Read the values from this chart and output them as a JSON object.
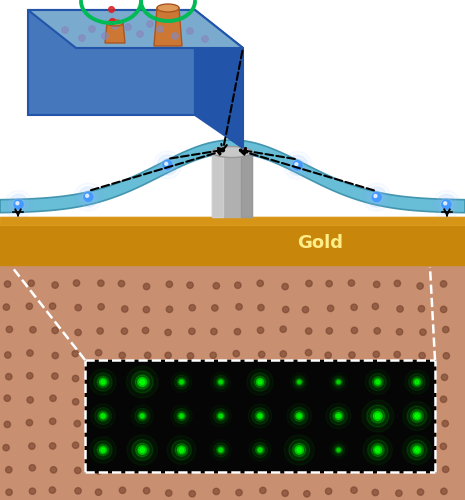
{
  "fig_width": 4.65,
  "fig_height": 5.0,
  "dpi": 100,
  "bg_color": "#ffffff",
  "gold_color": "#C8860A",
  "gold_top_color": "#E0A020",
  "gold_label": "Gold",
  "gold_label_color": "#FFEE88",
  "membrane_color": "#5BB8D4",
  "membrane_edge": "#3A90AA",
  "pillar_color": "#B0B0B0",
  "pillar_light": "#D8D8D8",
  "pillar_dark": "#888888",
  "dot_color": "#4499FF",
  "dot_glow": "#88BBFF",
  "arrow_color": "#111111",
  "box_front": "#4477BB",
  "box_right": "#2255AA",
  "box_top": "#7AAACE",
  "box_edge": "#2255AA",
  "pillar_inset_color": "#CC7733",
  "pillar_inset_light": "#DD9955",
  "pillar_inset_edge": "#AA5522",
  "red_dot_color": "#DD2222",
  "green_wave_color": "#00BB55",
  "flat_dot_color": "#8888BB",
  "pink_bg": "#C89070",
  "dark_dot_color": "#7A4530",
  "black_panel": "#050505",
  "green_dot": "#00FF00",
  "dashed_white": "#ffffff"
}
